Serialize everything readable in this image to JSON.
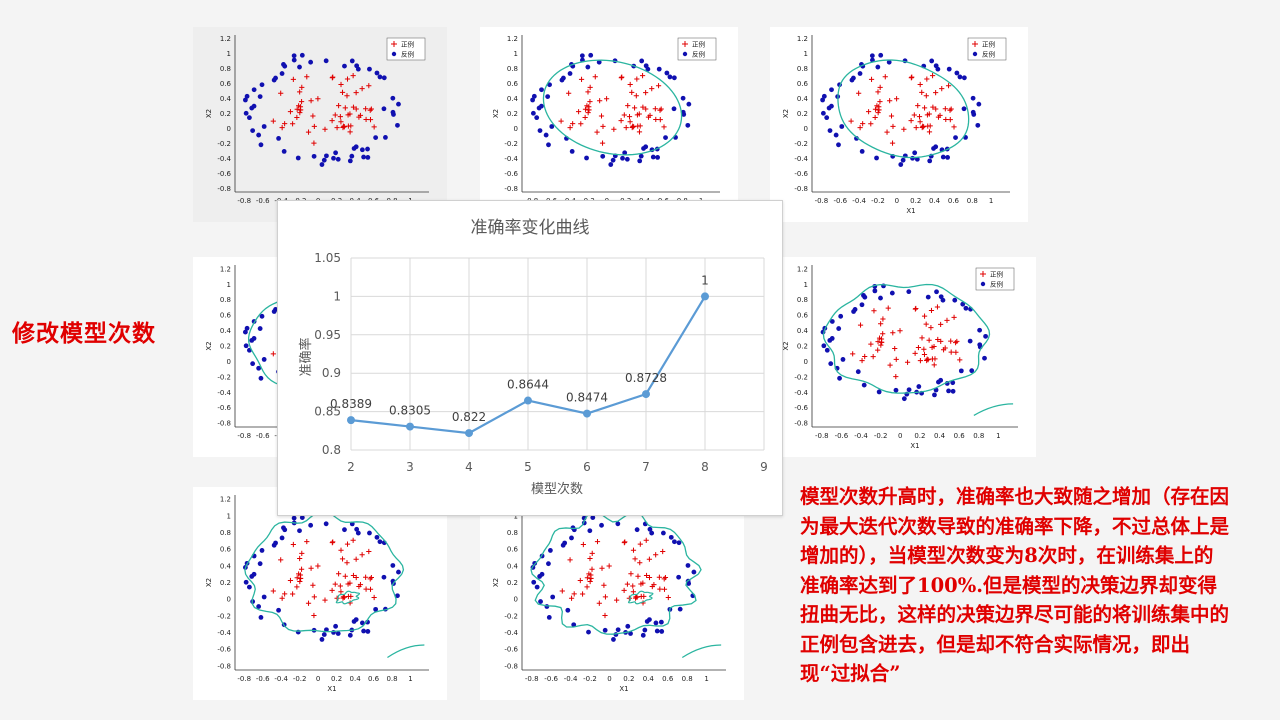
{
  "slide": {
    "side_title": "修改模型次数",
    "description": "模型次数升高时，准确率也大致随之增加（存在因为最大迭代次数导致的准确率下降，不过总体上是增加的），当模型次数变为8次时，在训练集上的准确率达到了100%.但是模型的决策边界却变得扭曲无比，这样的决策边界尽可能的将训练集中的正例包含进去，但是却不符合实际情况，即出现“过拟合”"
  },
  "scatter_plots": {
    "legend_positive": "正例",
    "legend_negative": "反例",
    "xlabel": "X1",
    "ylabel": "X2",
    "x_ticks": [
      "-0.8",
      "-0.6",
      "-0.4",
      "-0.2",
      "0",
      "0.2",
      "0.4",
      "0.6",
      "0.8",
      "1"
    ],
    "y_ticks": [
      "1.2",
      "1",
      "0.8",
      "0.6",
      "0.4",
      "0.2",
      "0",
      "-0.2",
      "-0.4",
      "-0.6",
      "-0.8"
    ],
    "positive_color": "#e00000",
    "negative_color": "#1010b0",
    "boundary_color": "#2bb5a0"
  },
  "chart_data": {
    "type": "line",
    "title": "准确率变化曲线",
    "xlabel": "模型次数",
    "ylabel": "准确率",
    "x": [
      2,
      3,
      4,
      5,
      6,
      7,
      8
    ],
    "values": [
      0.8389,
      0.8305,
      0.822,
      0.8644,
      0.8474,
      0.8728,
      1
    ],
    "data_labels": [
      "0.8389",
      "0.8305",
      "0.822",
      "0.8644",
      "0.8474",
      "0.8728",
      "1"
    ],
    "xlim": [
      2,
      9
    ],
    "ylim": [
      0.8,
      1.05
    ],
    "x_ticks": [
      "2",
      "3",
      "4",
      "5",
      "6",
      "7",
      "8",
      "9"
    ],
    "y_ticks": [
      "0.8",
      "0.85",
      "0.9",
      "0.95",
      "1",
      "1.05"
    ],
    "grid": true,
    "color": "#5b9bd5"
  }
}
